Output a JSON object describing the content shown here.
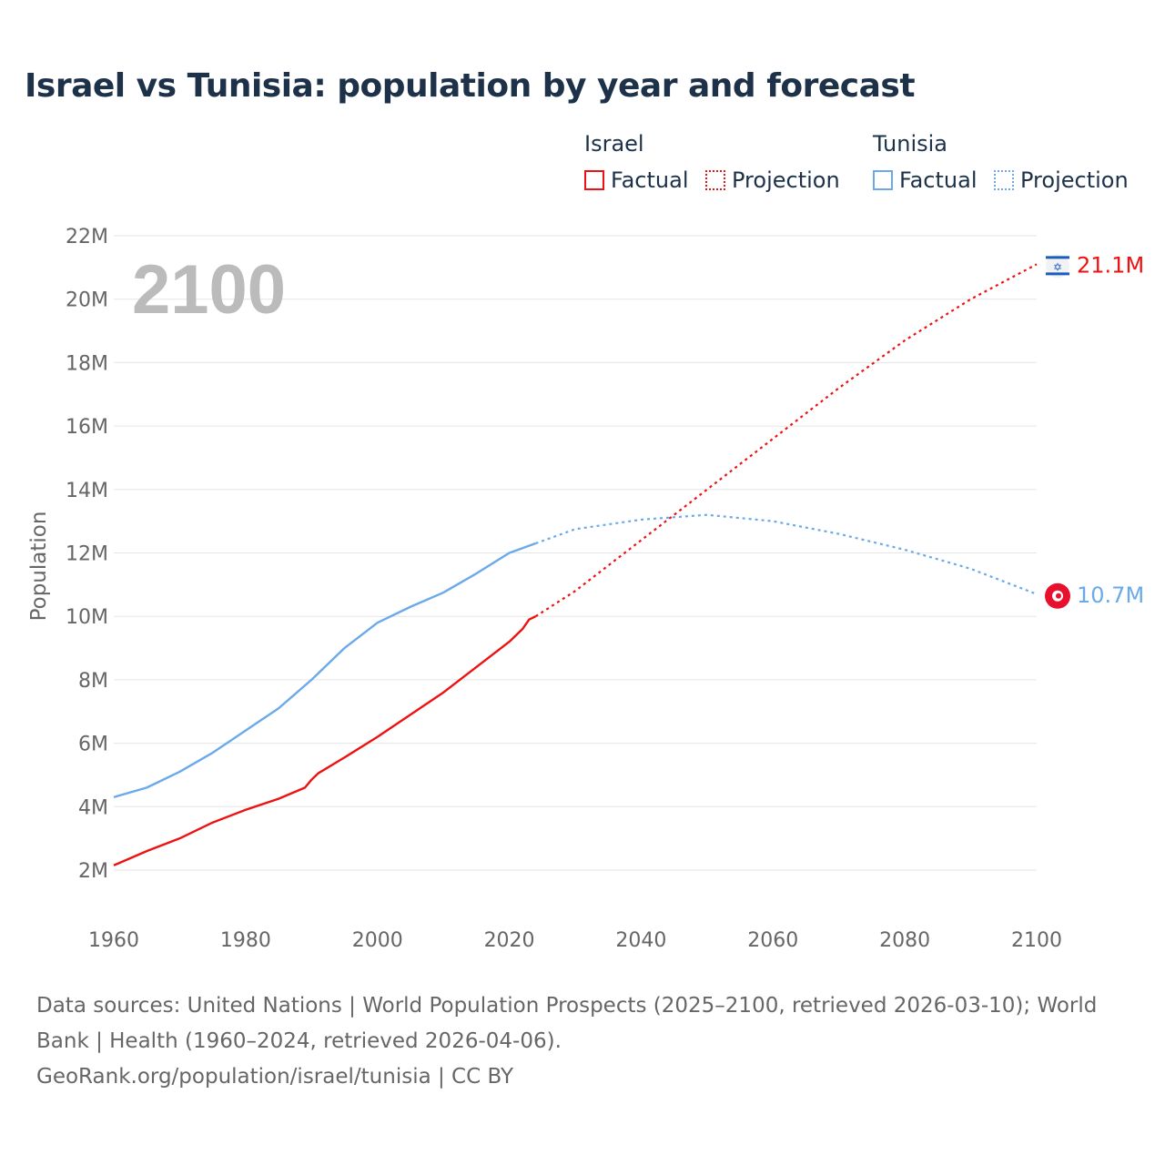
{
  "title": "Israel vs Tunisia: population by year and forecast",
  "legend": {
    "groups": [
      {
        "name": "Israel",
        "factual": "Factual",
        "projection": "Projection",
        "color": "#ee1111"
      },
      {
        "name": "Tunisia",
        "factual": "Factual",
        "projection": "Projection",
        "color": "#6aa9ea"
      }
    ]
  },
  "source": {
    "line1": "Data sources: United Nations | World Population Prospects (2025–2100, retrieved 2026-03-10); World Bank | Health (1960–2024, retrieved 2026-04-06).",
    "line2": "GeoRank.org/population/israel/tunisia | CC BY"
  },
  "chart_data": {
    "type": "line",
    "title": "Israel vs Tunisia: population by year and forecast",
    "xlabel": "",
    "ylabel": "Population",
    "xlim": [
      1960,
      2100
    ],
    "ylim": [
      2,
      22
    ],
    "x_ticks": [
      "1960",
      "1980",
      "2000",
      "2020",
      "2040",
      "2060",
      "2080",
      "2100"
    ],
    "y_ticks": [
      "2M",
      "4M",
      "6M",
      "8M",
      "10M",
      "12M",
      "14M",
      "16M",
      "18M",
      "20M",
      "22M"
    ],
    "year_label": "2100",
    "grid": true,
    "legend_position": "top-right",
    "series": [
      {
        "name": "Israel",
        "color": "#ee1111",
        "end_label": "21.1M",
        "factual": {
          "x": [
            1960,
            1965,
            1970,
            1975,
            1980,
            1985,
            1989,
            1990,
            1991,
            1995,
            2000,
            2005,
            2010,
            2015,
            2020,
            2022,
            2023,
            2024
          ],
          "y": [
            2.15,
            2.6,
            3.0,
            3.5,
            3.9,
            4.25,
            4.6,
            4.85,
            5.05,
            5.55,
            6.2,
            6.9,
            7.6,
            8.4,
            9.2,
            9.6,
            9.9,
            10.0
          ]
        },
        "projection": {
          "x": [
            2024,
            2030,
            2040,
            2050,
            2060,
            2070,
            2080,
            2090,
            2100
          ],
          "y": [
            10.0,
            10.8,
            12.4,
            14.0,
            15.6,
            17.2,
            18.7,
            20.0,
            21.1
          ]
        }
      },
      {
        "name": "Tunisia",
        "color": "#6aa9ea",
        "end_label": "10.7M",
        "factual": {
          "x": [
            1960,
            1965,
            1970,
            1975,
            1980,
            1985,
            1990,
            1995,
            2000,
            2005,
            2010,
            2015,
            2020,
            2024
          ],
          "y": [
            4.3,
            4.6,
            5.1,
            5.7,
            6.4,
            7.1,
            8.0,
            9.0,
            9.8,
            10.3,
            10.75,
            11.35,
            12.0,
            12.3
          ]
        },
        "projection": {
          "x": [
            2024,
            2030,
            2040,
            2050,
            2060,
            2070,
            2080,
            2090,
            2100
          ],
          "y": [
            12.3,
            12.75,
            13.05,
            13.2,
            13.0,
            12.6,
            12.1,
            11.5,
            10.7
          ]
        }
      }
    ]
  }
}
